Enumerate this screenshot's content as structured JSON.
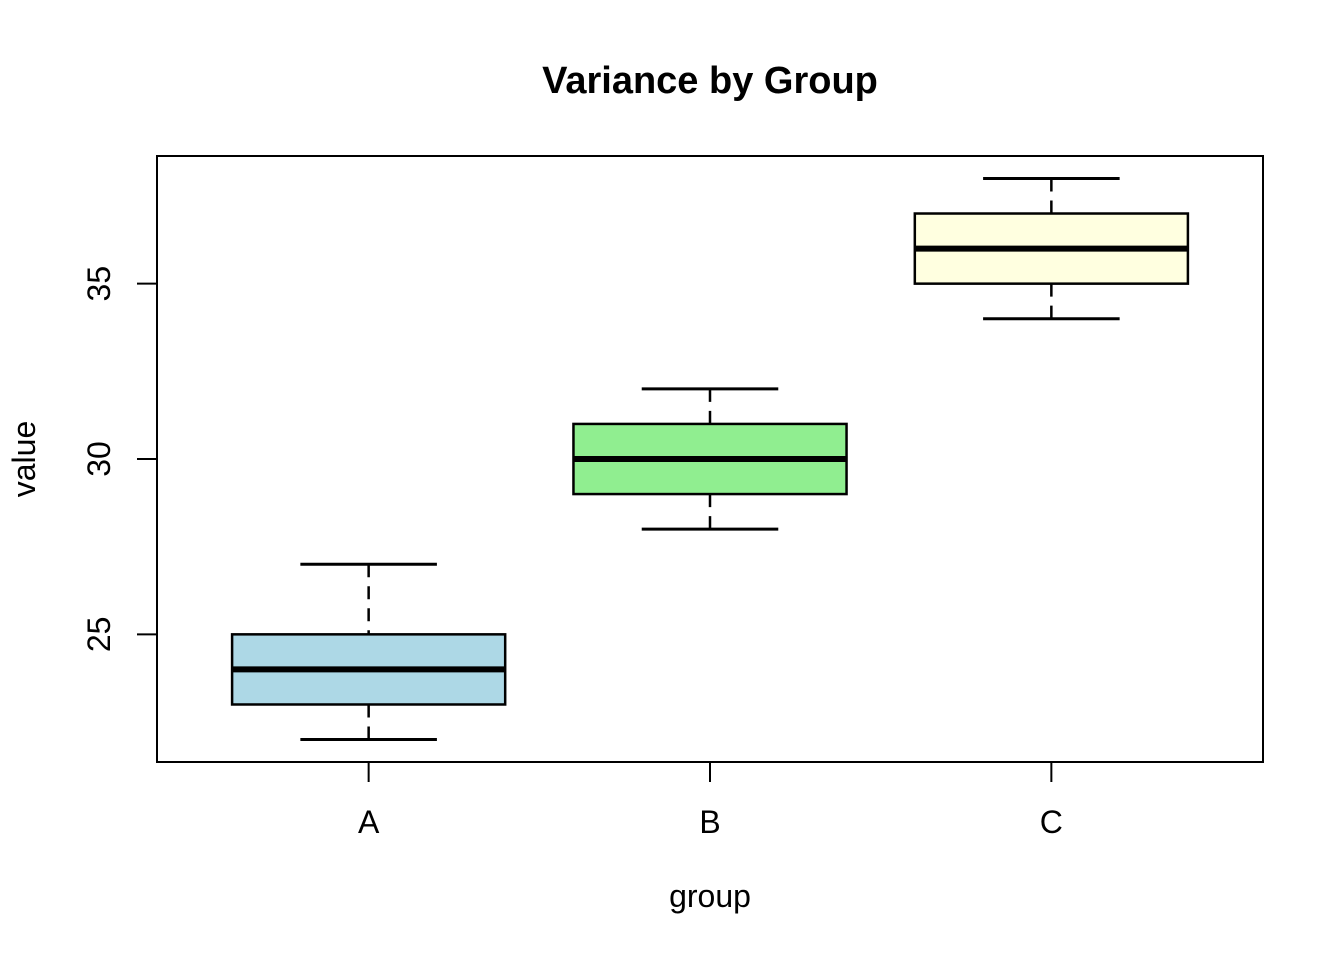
{
  "chart_data": {
    "type": "boxplot",
    "title": "Variance by Group",
    "xlabel": "group",
    "ylabel": "value",
    "categories": [
      "A",
      "B",
      "C"
    ],
    "y_ticks": [
      25,
      30,
      35
    ],
    "ylim": [
      21.36,
      38.64
    ],
    "xlim": [
      0.38,
      3.62
    ],
    "grid": false,
    "legend": false,
    "outliers": [],
    "series": [
      {
        "name": "A",
        "min": 22,
        "q1": 23,
        "median": 24,
        "q3": 25,
        "max": 27,
        "fill": "#ADD8E6"
      },
      {
        "name": "B",
        "min": 28,
        "q1": 29,
        "median": 30,
        "q3": 31,
        "max": 32,
        "fill": "#90EE90"
      },
      {
        "name": "C",
        "min": 34,
        "q1": 35,
        "median": 36,
        "q3": 37,
        "max": 38,
        "fill": "#FFFFE0"
      }
    ],
    "colors": {
      "stroke": "#000000",
      "background": "#FFFFFF"
    }
  }
}
